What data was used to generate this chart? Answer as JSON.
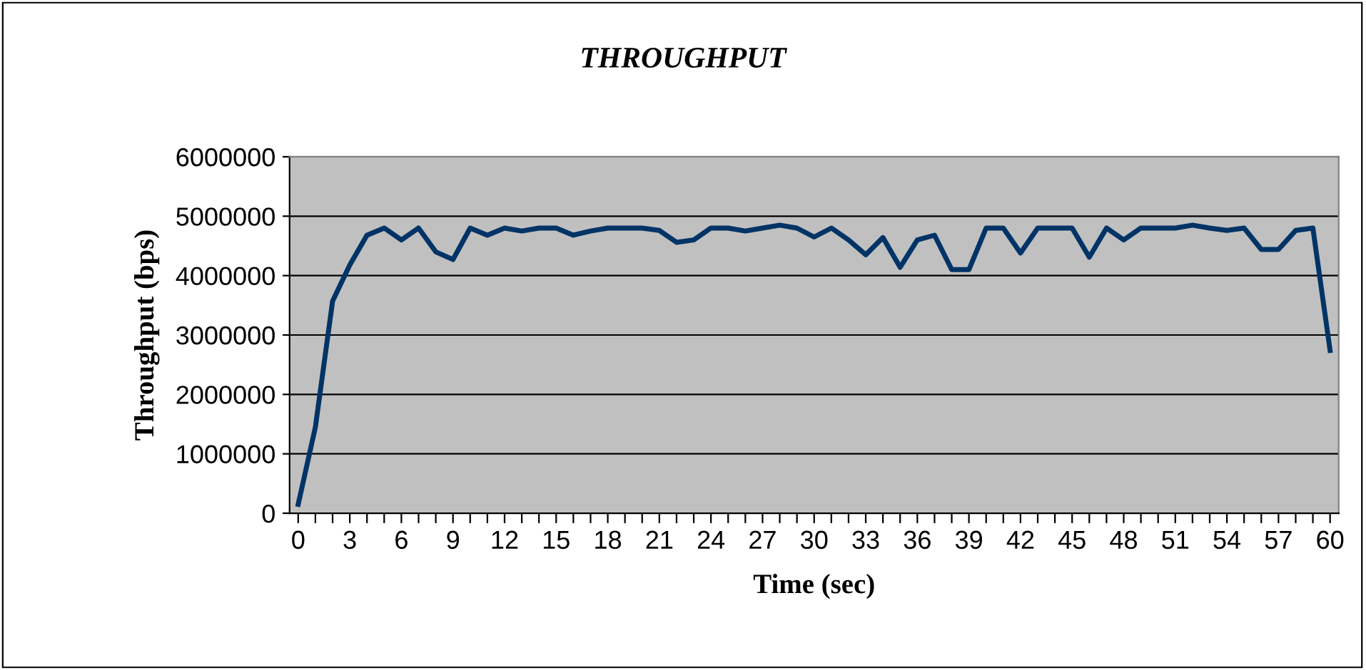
{
  "chart_data": {
    "type": "line",
    "title": "THROUGHPUT",
    "xlabel": "Time (sec)",
    "ylabel": "Throughput (bps)",
    "categories": [
      "0",
      null,
      null,
      "3",
      null,
      null,
      "6",
      null,
      null,
      "9",
      null,
      null,
      "12",
      null,
      null,
      "15",
      null,
      null,
      "18",
      null,
      null,
      "21",
      null,
      null,
      "24",
      null,
      null,
      "27",
      null,
      null,
      "30",
      null,
      null,
      "33",
      null,
      null,
      "36",
      null,
      null,
      "39",
      null,
      null,
      "42",
      null,
      null,
      "45",
      null,
      null,
      "48",
      null,
      null,
      "51",
      null,
      null,
      "54",
      null,
      null,
      "57",
      null,
      null,
      "60"
    ],
    "series": [
      {
        "color": "#003366",
        "values": [
          150000,
          1450000,
          3570000,
          4180000,
          4680000,
          4800000,
          4600000,
          4800000,
          4400000,
          4270000,
          4800000,
          4680000,
          4800000,
          4750000,
          4800000,
          4800000,
          4680000,
          4750000,
          4800000,
          4800000,
          4800000,
          4760000,
          4560000,
          4600000,
          4800000,
          4800000,
          4750000,
          4800000,
          4850000,
          4800000,
          4650000,
          4800000,
          4600000,
          4350000,
          4640000,
          4140000,
          4600000,
          4680000,
          4100000,
          4100000,
          4800000,
          4800000,
          4380000,
          4800000,
          4800000,
          4800000,
          4310000,
          4800000,
          4600000,
          4800000,
          4800000,
          4800000,
          4850000,
          4800000,
          4760000,
          4800000,
          4440000,
          4440000,
          4760000,
          4800000,
          2740000
        ]
      }
    ],
    "ylim": [
      0,
      6000000
    ],
    "yticks": [
      0,
      1000000,
      2000000,
      3000000,
      4000000,
      5000000,
      6000000
    ],
    "grid": "y",
    "legend": false,
    "marker": "none",
    "line_style": "solid"
  }
}
